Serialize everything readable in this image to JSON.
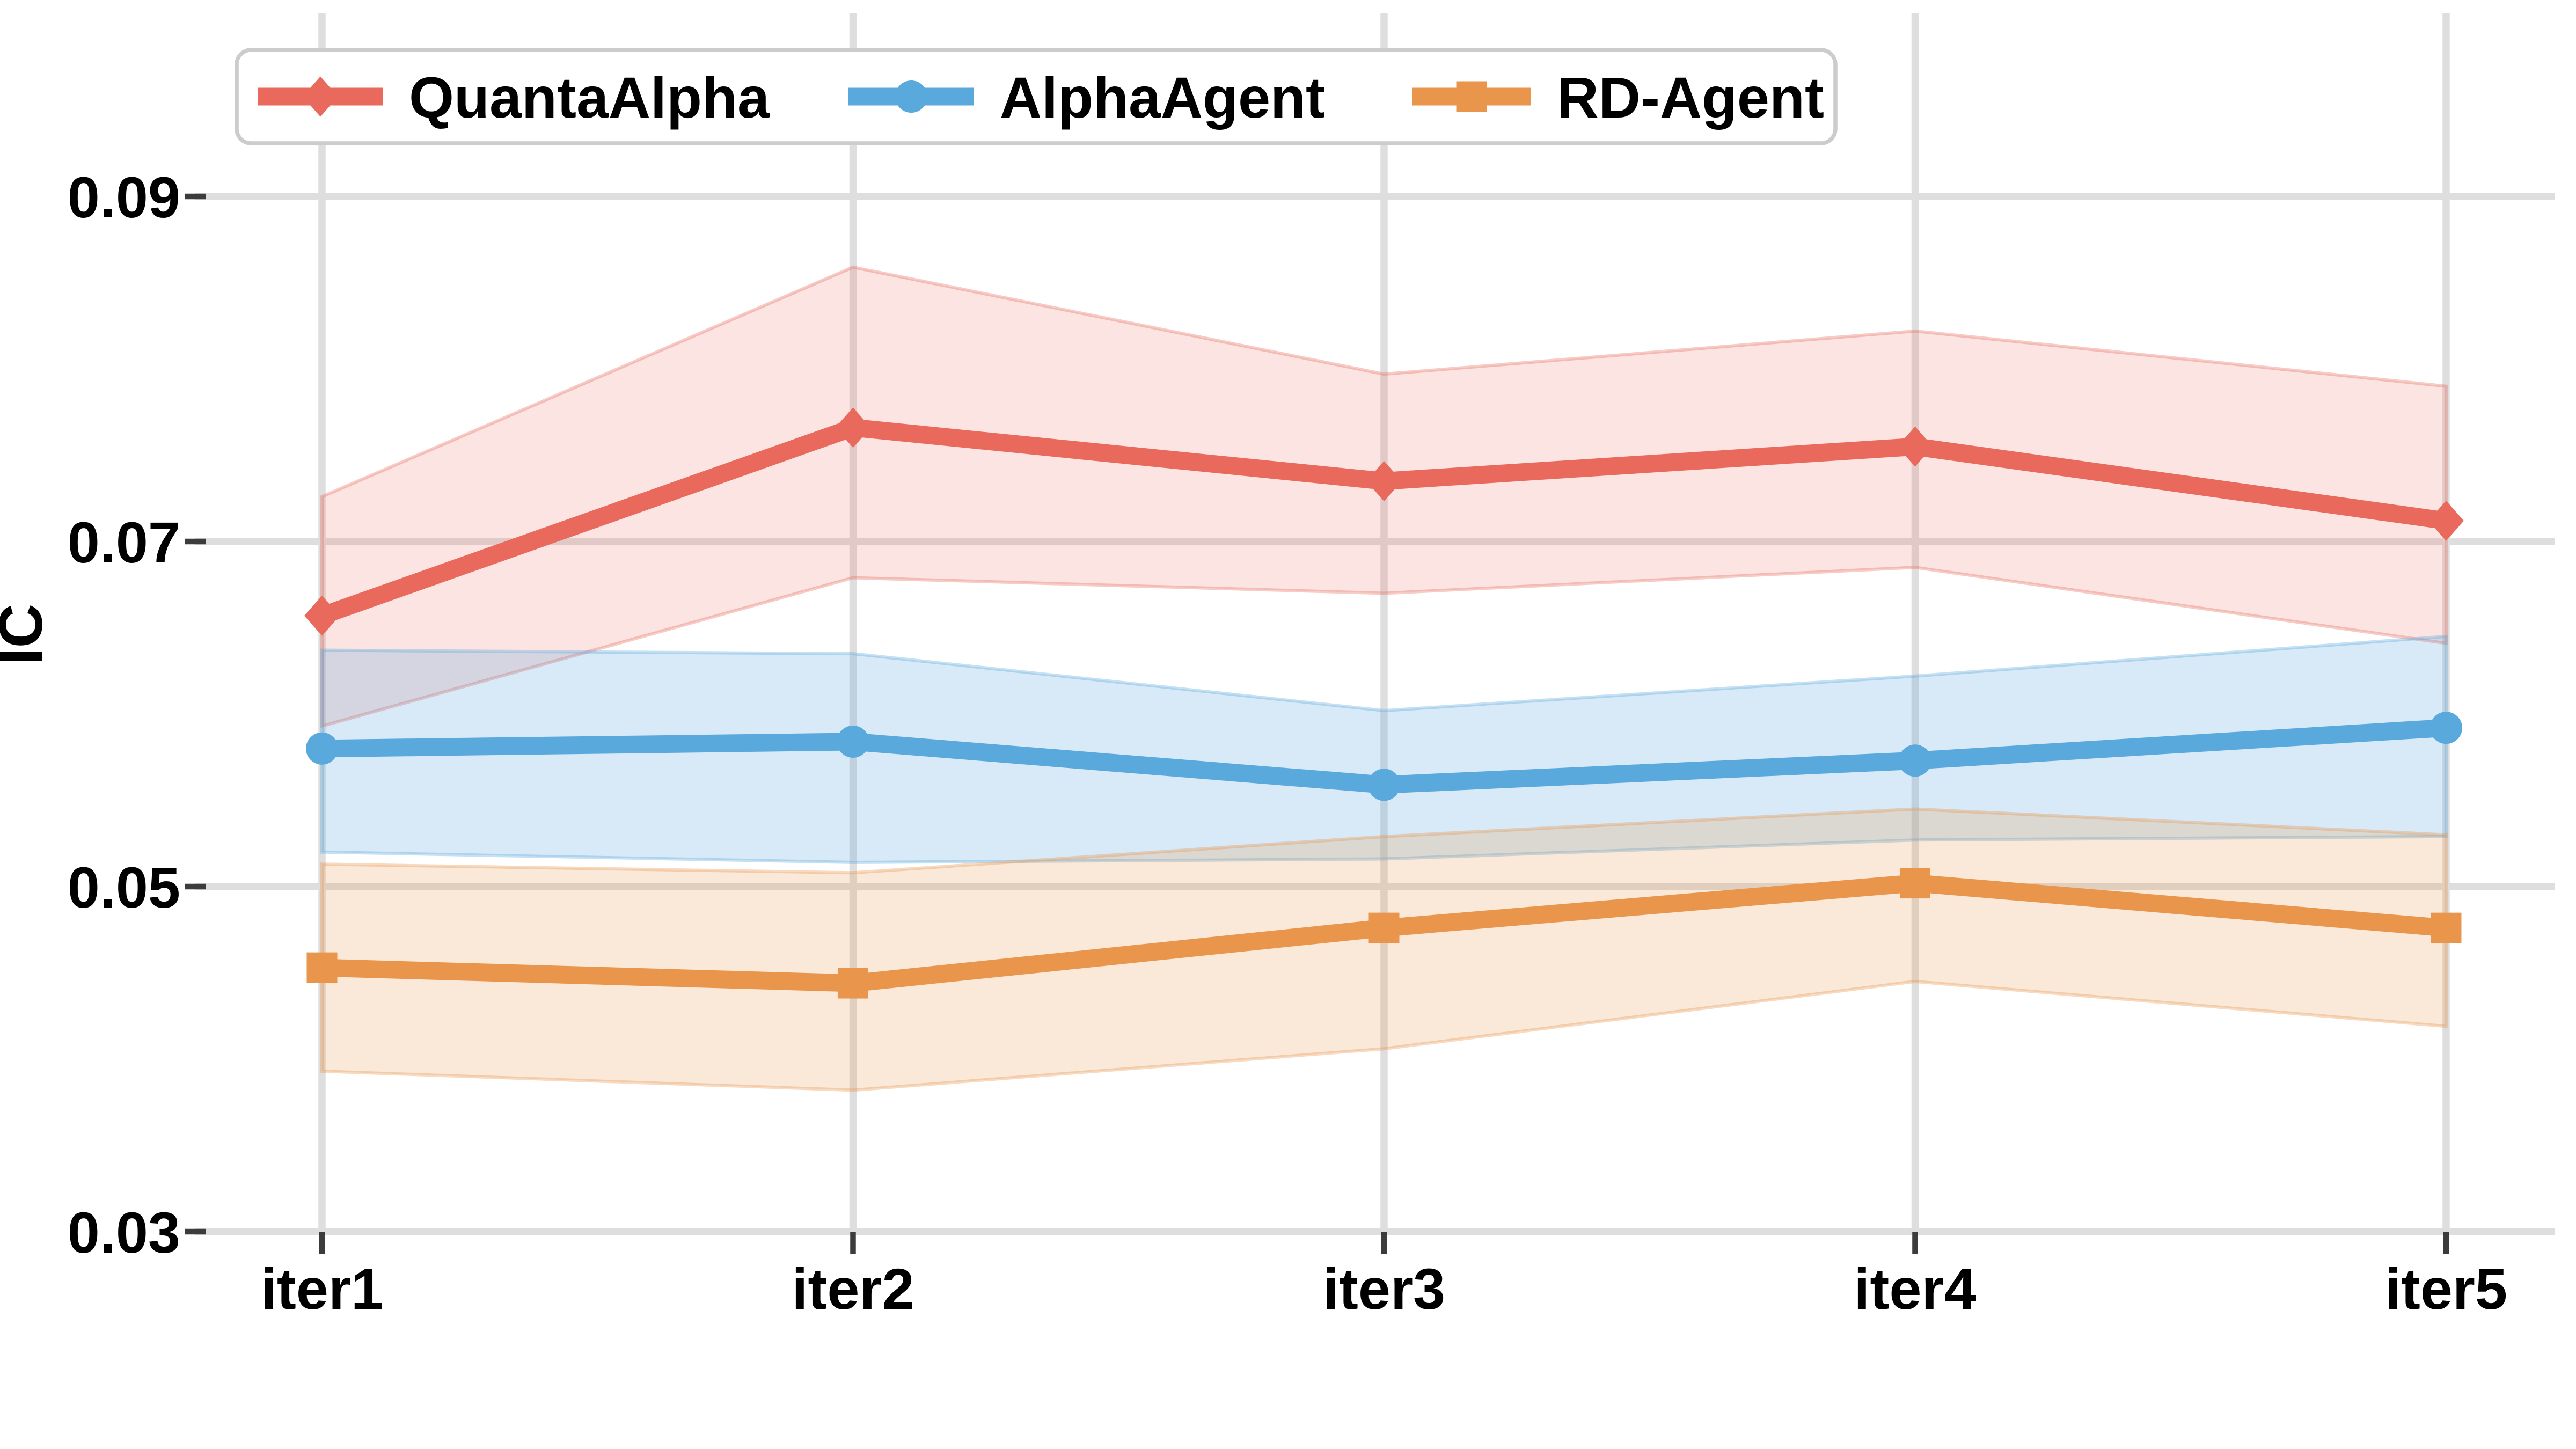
{
  "chart_data": {
    "type": "line",
    "title": "",
    "xlabel": "",
    "ylabel": "IC",
    "categories": [
      "iter1",
      "iter2",
      "iter3",
      "iter4",
      "iter5"
    ],
    "yticks": [
      0.03,
      0.05,
      0.07,
      0.09
    ],
    "ytick_labels": [
      "0.03",
      "0.05",
      "0.07",
      "0.09"
    ],
    "ylim": [
      0.03,
      0.09
    ],
    "grid": true,
    "legend_position": "top-left-horizontal",
    "grid_color": "#DEDEDE",
    "tick_color": "#3C3C3C",
    "legend_border_color": "#CCCCCC",
    "series": [
      {
        "name": "QuantaAlpha",
        "color": "#E96A5C",
        "marker": "diamond",
        "values": [
          0.0657,
          0.0766,
          0.0735,
          0.0755,
          0.0712
        ],
        "band_upper": [
          0.0726,
          0.0859,
          0.0797,
          0.0822,
          0.079
        ],
        "band_lower": [
          0.0593,
          0.0679,
          0.067,
          0.0685,
          0.0641
        ]
      },
      {
        "name": "AlphaAgent",
        "color": "#5AA9DC",
        "marker": "circle",
        "values": [
          0.058,
          0.0584,
          0.0559,
          0.0573,
          0.0592
        ],
        "band_upper": [
          0.0637,
          0.0635,
          0.0602,
          0.0622,
          0.0645
        ],
        "band_lower": [
          0.052,
          0.0514,
          0.0516,
          0.0527,
          0.0529
        ]
      },
      {
        "name": "RD-Agent",
        "color": "#E9964C",
        "marker": "square",
        "values": [
          0.0453,
          0.0444,
          0.0476,
          0.0502,
          0.0476
        ],
        "band_upper": [
          0.0513,
          0.0508,
          0.0529,
          0.0545,
          0.053
        ],
        "band_lower": [
          0.0393,
          0.0382,
          0.0406,
          0.0445,
          0.0419
        ]
      }
    ]
  }
}
